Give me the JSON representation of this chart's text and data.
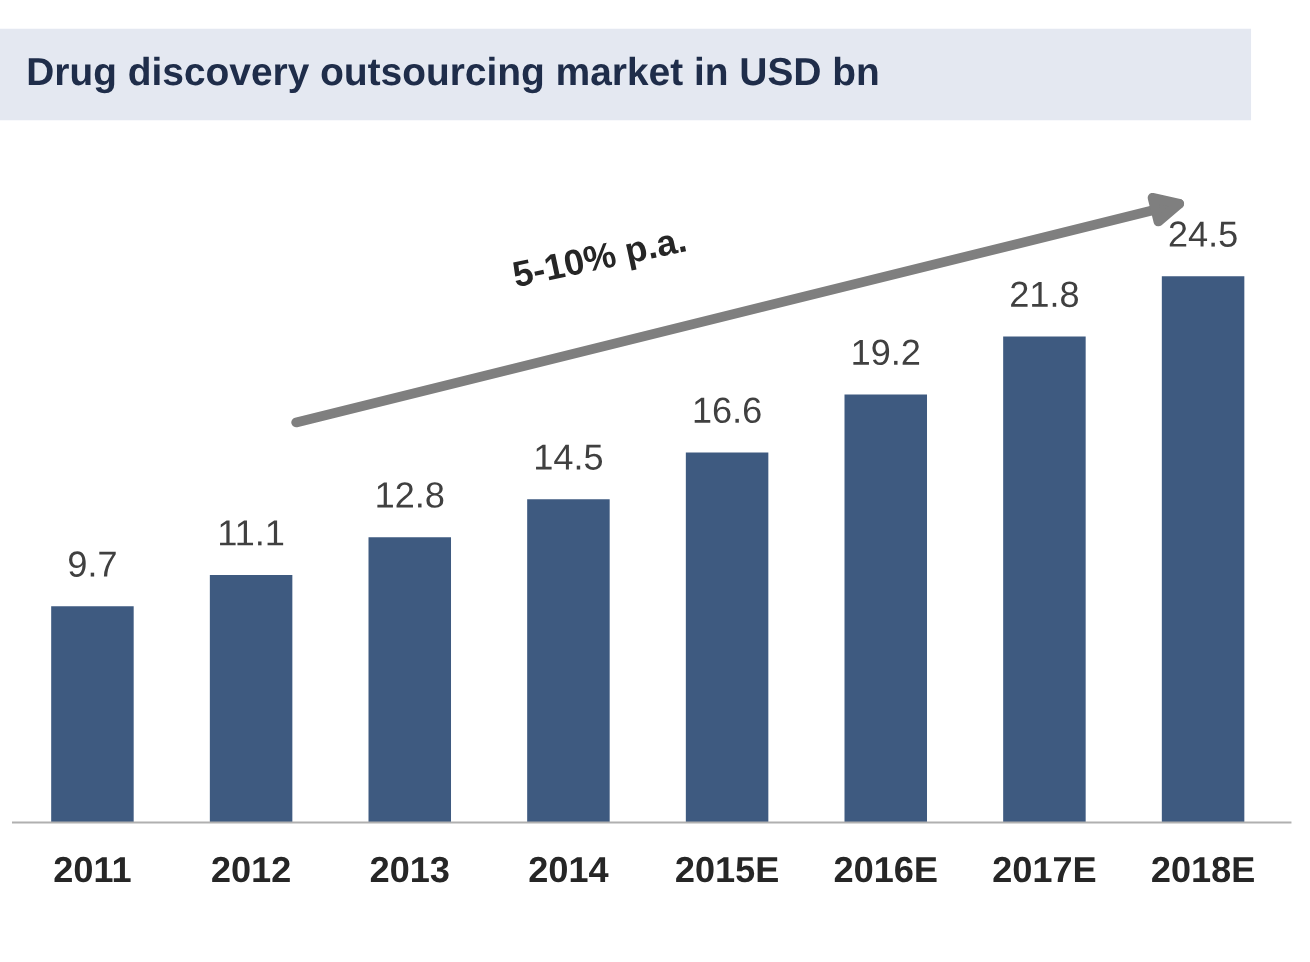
{
  "chart_data": {
    "type": "bar",
    "title": "Drug discovery outsourcing market in USD bn",
    "categories": [
      "2011",
      "2012",
      "2013",
      "2014",
      "2015E",
      "2016E",
      "2017E",
      "2018E"
    ],
    "values": [
      9.7,
      11.1,
      12.8,
      14.5,
      16.6,
      19.2,
      21.8,
      24.5
    ],
    "color": "#3e5a80",
    "data_labels": true,
    "grid": false,
    "legend": false,
    "annotations": [
      "5-10% p.a."
    ]
  }
}
